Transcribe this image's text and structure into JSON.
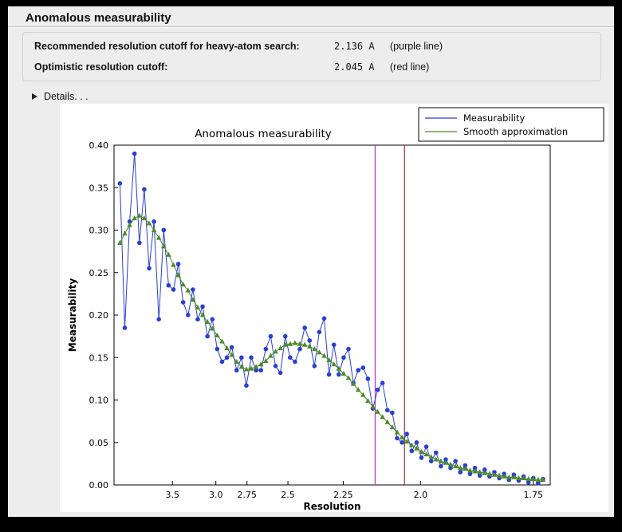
{
  "window": {
    "title": "Anomalous measurability",
    "cutoffs": {
      "recommended_label": "Recommended resolution cutoff for heavy-atom search:",
      "recommended_value": "2.136 A",
      "recommended_note": "(purple line)",
      "optimistic_label": "Optimistic resolution cutoff:",
      "optimistic_value": "2.045 A",
      "optimistic_note": "(red line)"
    },
    "details_label": "Details. . ."
  },
  "chart_data": {
    "type": "line",
    "title": "Anomalous measurability",
    "xlabel": "Resolution",
    "ylabel": "Measurability",
    "x_axis": {
      "scale": "1/d^2",
      "s_min": 0.042,
      "s_max": 0.338,
      "tick_resolutions": [
        3.5,
        3.0,
        2.75,
        2.5,
        2.25,
        2.0,
        1.75
      ],
      "tick_labels": [
        "3.5",
        "3.0",
        "2.75",
        "2.5",
        "2.25",
        "2.0",
        "1.75"
      ]
    },
    "y_axis": {
      "min": 0.0,
      "max": 0.4,
      "ticks": [
        "0.00",
        "0.05",
        "0.10",
        "0.15",
        "0.20",
        "0.25",
        "0.30",
        "0.35",
        "0.40"
      ]
    },
    "x": {
      "start": 0.046,
      "step": 0.0033,
      "count": 88
    },
    "series": [
      {
        "name": "Measurability",
        "color": "#2a3fd0",
        "marker": "circle",
        "values": [
          0.355,
          0.185,
          0.31,
          0.39,
          0.285,
          0.348,
          0.255,
          0.31,
          0.195,
          0.3,
          0.235,
          0.23,
          0.26,
          0.215,
          0.2,
          0.23,
          0.195,
          0.21,
          0.175,
          0.195,
          0.16,
          0.145,
          0.15,
          0.162,
          0.135,
          0.15,
          0.117,
          0.15,
          0.135,
          0.135,
          0.16,
          0.175,
          0.14,
          0.132,
          0.175,
          0.15,
          0.145,
          0.16,
          0.185,
          0.17,
          0.14,
          0.18,
          0.196,
          0.13,
          0.165,
          0.13,
          0.15,
          0.16,
          0.12,
          0.135,
          0.138,
          0.125,
          0.09,
          0.112,
          0.12,
          0.088,
          0.085,
          0.055,
          0.05,
          0.06,
          0.04,
          0.05,
          0.032,
          0.045,
          0.028,
          0.038,
          0.022,
          0.03,
          0.02,
          0.028,
          0.015,
          0.023,
          0.013,
          0.02,
          0.011,
          0.018,
          0.01,
          0.015,
          0.008,
          0.013,
          0.006,
          0.012,
          0.005,
          0.01,
          0.003,
          0.008,
          0.002,
          0.007
        ]
      },
      {
        "name": "Smooth approximation",
        "color": "#4e8b27",
        "marker": "triangle",
        "values": [
          0.285,
          0.296,
          0.306,
          0.314,
          0.317,
          0.314,
          0.308,
          0.3,
          0.291,
          0.281,
          0.271,
          0.259,
          0.247,
          0.236,
          0.229,
          0.218,
          0.209,
          0.2,
          0.192,
          0.184,
          0.176,
          0.169,
          0.161,
          0.153,
          0.145,
          0.139,
          0.136,
          0.137,
          0.139,
          0.142,
          0.146,
          0.152,
          0.157,
          0.161,
          0.165,
          0.166,
          0.167,
          0.166,
          0.165,
          0.163,
          0.16,
          0.156,
          0.152,
          0.147,
          0.142,
          0.137,
          0.131,
          0.126,
          0.119,
          0.112,
          0.106,
          0.099,
          0.092,
          0.086,
          0.08,
          0.074,
          0.068,
          0.062,
          0.056,
          0.051,
          0.047,
          0.043,
          0.039,
          0.036,
          0.033,
          0.03,
          0.028,
          0.026,
          0.024,
          0.022,
          0.02,
          0.019,
          0.017,
          0.016,
          0.015,
          0.014,
          0.013,
          0.012,
          0.011,
          0.01,
          0.009,
          0.009,
          0.008,
          0.008,
          0.007,
          0.007,
          0.006,
          0.006
        ]
      }
    ],
    "vlines": [
      {
        "resolution": 2.136,
        "color": "#bb30bb",
        "name": "purple line"
      },
      {
        "resolution": 2.045,
        "color": "#9b3333",
        "name": "red line"
      }
    ],
    "legend": {
      "position": "upper right",
      "entries": [
        "Measurability",
        "Smooth approximation"
      ]
    }
  }
}
